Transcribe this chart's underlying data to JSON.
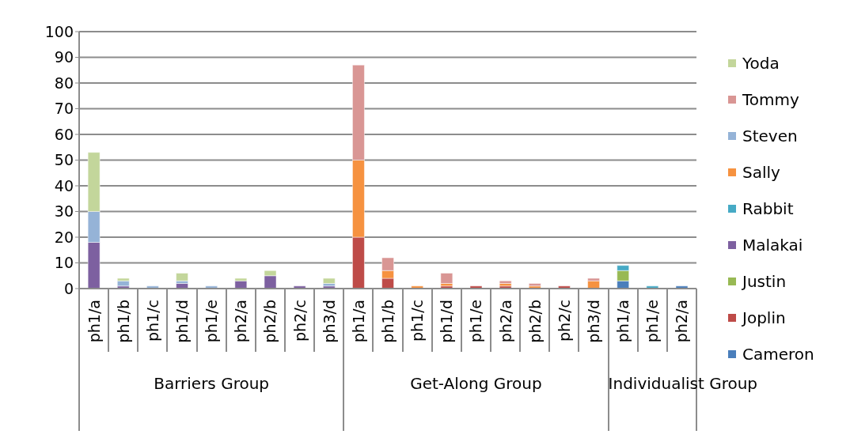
{
  "chart_data": {
    "type": "bar",
    "stacked": true,
    "categories": [
      "ph1/a",
      "ph1/b",
      "ph1/c",
      "ph1/d",
      "ph1/e",
      "ph2/a",
      "ph2/b",
      "ph2/c",
      "ph3/d",
      "ph1/a",
      "ph1/b",
      "ph1/c",
      "ph1/d",
      "ph1/e",
      "ph2/a",
      "ph2/b",
      "ph2/c",
      "ph3/d",
      "ph1/a",
      "ph1/e",
      "ph2/a"
    ],
    "annotations": [
      "Barriers Group",
      "Get-Along Group",
      "Individualist Group"
    ],
    "series": [
      {
        "name": "Cameron",
        "color": "#4a7ebb",
        "values": [
          null,
          null,
          null,
          null,
          null,
          null,
          null,
          null,
          null,
          null,
          null,
          null,
          null,
          null,
          null,
          null,
          null,
          null,
          3,
          null,
          1
        ]
      },
      {
        "name": "Joplin",
        "color": "#be4b48",
        "values": [
          null,
          null,
          null,
          null,
          null,
          null,
          null,
          null,
          null,
          20,
          4,
          null,
          1,
          1,
          1,
          null,
          1,
          null,
          null,
          null,
          null
        ]
      },
      {
        "name": "Justin",
        "color": "#98b954",
        "values": [
          null,
          null,
          null,
          null,
          null,
          null,
          null,
          null,
          null,
          null,
          null,
          null,
          null,
          null,
          null,
          null,
          null,
          null,
          4,
          null,
          null
        ]
      },
      {
        "name": "Malakai",
        "color": "#7d60a0",
        "values": [
          18,
          1,
          null,
          2,
          null,
          3,
          5,
          1,
          1,
          null,
          null,
          null,
          null,
          null,
          null,
          null,
          null,
          null,
          null,
          null,
          null
        ]
      },
      {
        "name": "Rabbit",
        "color": "#46aac5",
        "values": [
          null,
          null,
          null,
          null,
          null,
          null,
          null,
          null,
          null,
          null,
          null,
          null,
          null,
          null,
          null,
          null,
          null,
          null,
          2,
          1,
          null
        ]
      },
      {
        "name": "Sally",
        "color": "#f69240",
        "values": [
          null,
          null,
          null,
          null,
          null,
          null,
          null,
          null,
          null,
          30,
          3,
          1,
          1,
          null,
          1,
          1,
          null,
          3,
          null,
          null,
          null
        ]
      },
      {
        "name": "Steven",
        "color": "#95b3d7",
        "values": [
          12,
          2,
          1,
          1,
          1,
          null,
          null,
          null,
          1,
          null,
          null,
          null,
          null,
          null,
          null,
          null,
          null,
          null,
          null,
          null,
          null
        ]
      },
      {
        "name": "Tommy",
        "color": "#d99694",
        "values": [
          null,
          null,
          null,
          null,
          null,
          null,
          null,
          null,
          null,
          37,
          5,
          null,
          4,
          null,
          1,
          1,
          null,
          1,
          null,
          null,
          null
        ]
      },
      {
        "name": "Yoda",
        "color": "#c3d69b",
        "values": [
          23,
          1,
          null,
          3,
          null,
          1,
          2,
          null,
          2,
          null,
          null,
          null,
          null,
          null,
          null,
          null,
          null,
          null,
          null,
          null,
          null
        ]
      }
    ],
    "ylim": [
      0,
      100
    ],
    "yticks": [
      0,
      10,
      20,
      30,
      40,
      50,
      60,
      70,
      80,
      90,
      100
    ],
    "grid": "y",
    "legend": "right"
  }
}
